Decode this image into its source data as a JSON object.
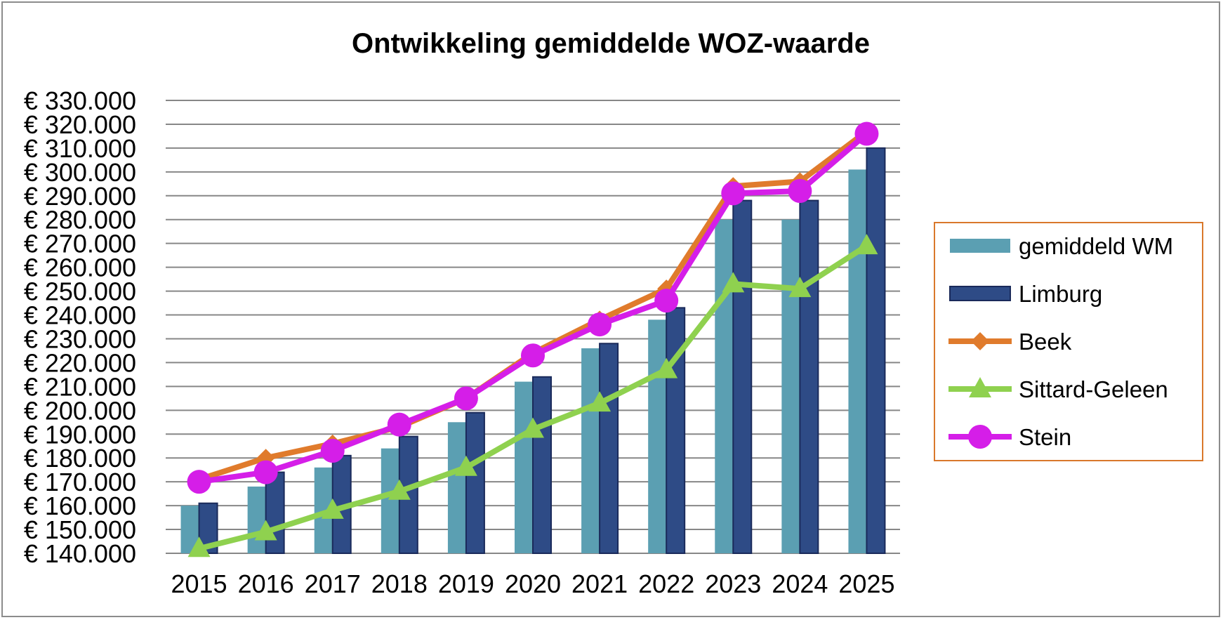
{
  "chart_data": {
    "type": "bar",
    "title": "Ontwikkeling gemiddelde WOZ-waarde",
    "xlabel": "",
    "ylabel": "",
    "categories": [
      "2015",
      "2016",
      "2017",
      "2018",
      "2019",
      "2020",
      "2021",
      "2022",
      "2023",
      "2024",
      "2025"
    ],
    "ylim": [
      140000,
      330000
    ],
    "ytick_step": 10000,
    "ytick_labels": [
      "€ 140.000",
      "€ 150.000",
      "€ 160.000",
      "€ 170.000",
      "€ 180.000",
      "€ 190.000",
      "€ 200.000",
      "€ 210.000",
      "€ 220.000",
      "€ 230.000",
      "€ 240.000",
      "€ 250.000",
      "€ 260.000",
      "€ 270.000",
      "€ 280.000",
      "€ 290.000",
      "€ 300.000",
      "€ 310.000",
      "€ 320.000",
      "€ 330.000"
    ],
    "grid": true,
    "legend_position": "right",
    "series": [
      {
        "name": "gemiddeld WM",
        "kind": "bar",
        "color": "#5b9fb2",
        "values": [
          160000,
          168000,
          176000,
          184000,
          195000,
          212000,
          226000,
          238000,
          280000,
          280000,
          301000
        ]
      },
      {
        "name": "Limburg",
        "kind": "bar",
        "color": "#2e4b86",
        "values": [
          161000,
          174000,
          181000,
          189000,
          199000,
          214000,
          228000,
          243000,
          288000,
          288000,
          310000
        ]
      },
      {
        "name": "Beek",
        "kind": "line",
        "marker": "diamond",
        "color": "#e07b2c",
        "values": [
          171000,
          180000,
          186000,
          193000,
          205000,
          224000,
          238000,
          251000,
          294000,
          296000,
          317000
        ]
      },
      {
        "name": "Sittard-Geleen",
        "kind": "line",
        "marker": "triangle",
        "color": "#8fd14f",
        "values": [
          142000,
          149000,
          158000,
          166000,
          176000,
          192000,
          203000,
          217000,
          253000,
          251000,
          269000
        ]
      },
      {
        "name": "Stein",
        "kind": "line",
        "marker": "circle",
        "color": "#d51ee8",
        "values": [
          170000,
          174000,
          183000,
          194000,
          205000,
          223000,
          236000,
          246000,
          291000,
          292000,
          316000
        ]
      }
    ]
  }
}
